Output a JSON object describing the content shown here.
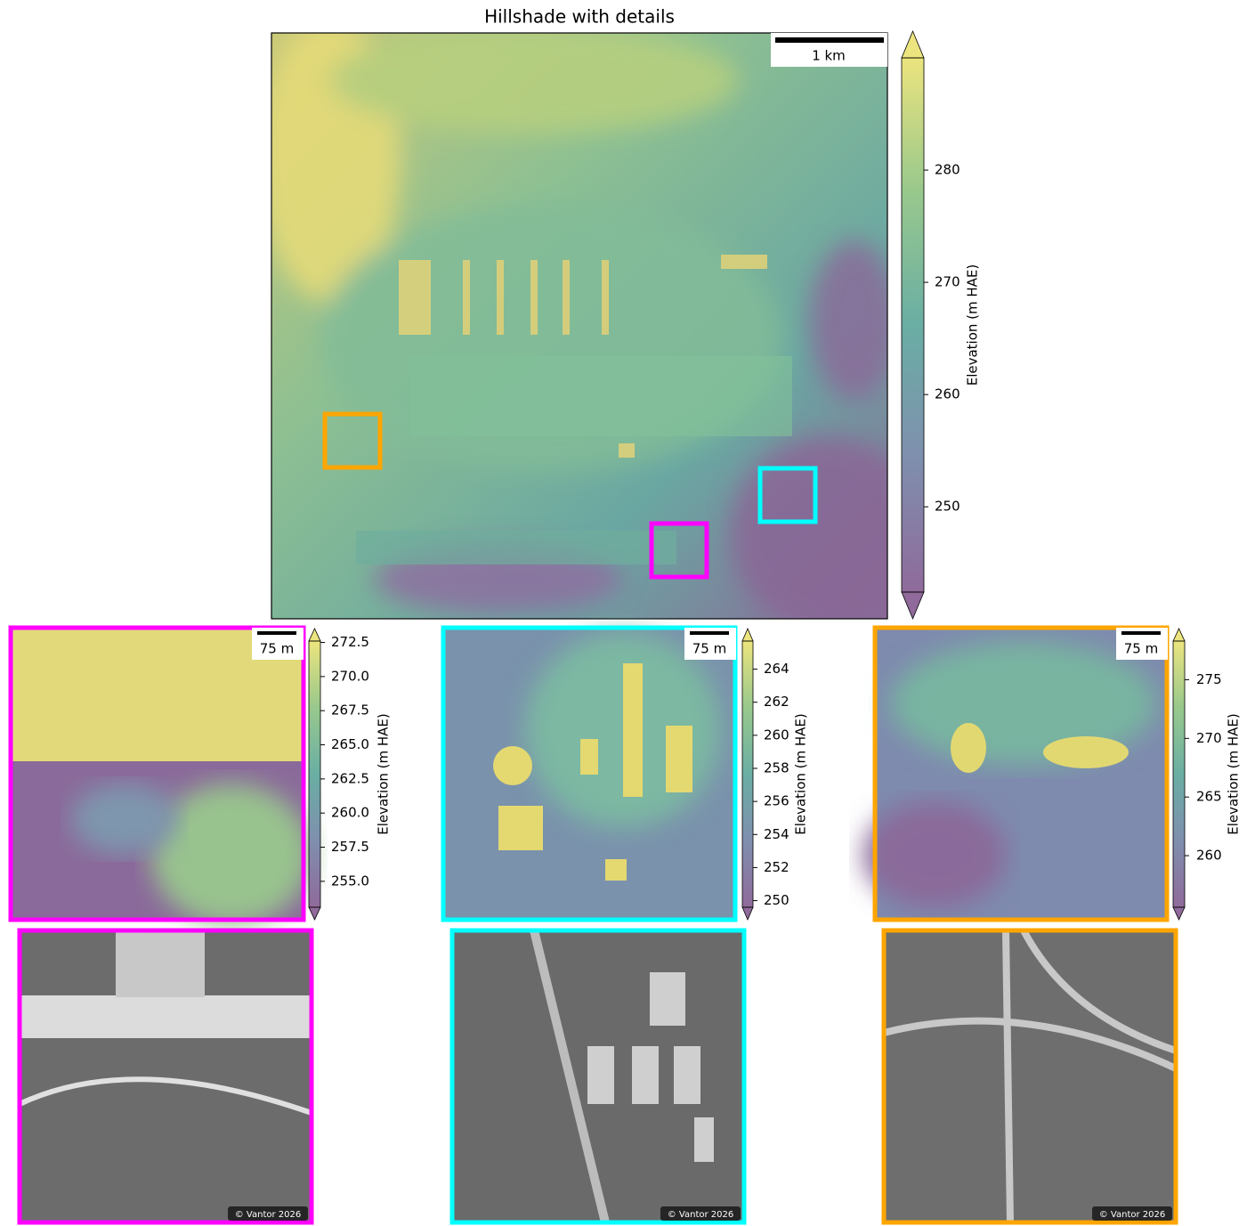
{
  "title": "Hillshade with details",
  "main_map": {
    "scale_bar": "1 km"
  },
  "colorbars": [
    {
      "label": "Elevation (m HAE)",
      "ylim": [
        242.4,
        290
      ],
      "yticks": [
        250,
        260,
        270,
        280
      ]
    },
    {
      "label": "Elevation (m HAE)",
      "ylim": [
        253.1,
        272.6
      ],
      "yticks": [
        {
          "value": 255,
          "label": "255.0"
        },
        257.5,
        {
          "value": 260,
          "label": "260.0"
        },
        262.5,
        {
          "value": 265,
          "label": "265.0"
        },
        267.5,
        {
          "value": 270,
          "label": "270.0"
        },
        272.5
      ]
    },
    {
      "label": "Elevation (m HAE)",
      "ylim": [
        249.6,
        265.7
      ],
      "yticks": [
        250,
        252,
        254,
        256,
        258,
        260,
        262,
        264
      ]
    },
    {
      "label": "Elevation (m HAE)",
      "ylim": [
        255.6,
        278.3
      ],
      "yticks": [
        260,
        265,
        270,
        275
      ]
    }
  ],
  "insets": [
    {
      "scale_bar": "75 m",
      "credit": "© Vantor 2026"
    },
    {
      "scale_bar": "75 m",
      "credit": "© Vantor 2026"
    },
    {
      "scale_bar": "75 m",
      "credit": "© Vantor 2026"
    }
  ]
}
